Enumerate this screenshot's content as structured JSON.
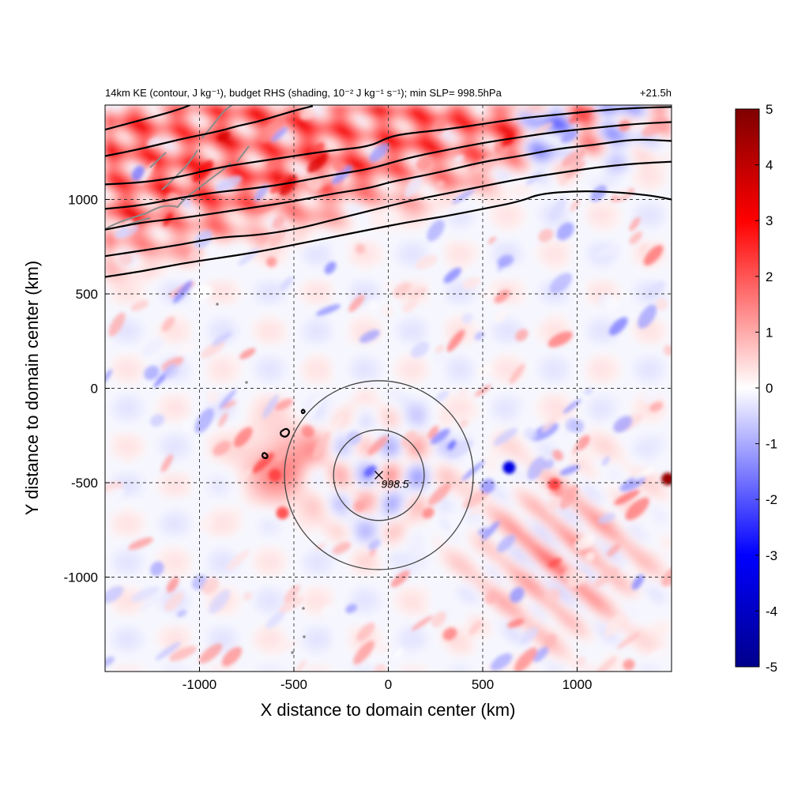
{
  "chart_data": {
    "type": "heatmap",
    "title_left": "14km KE (contour, J kg⁻¹), budget RHS (shading, 10⁻² J kg⁻¹ s⁻¹); min SLP= 998.5hPa",
    "title_right": "+21.5h",
    "xlabel": "X distance to domain center (km)",
    "ylabel": "Y distance to domain center (km)",
    "xlim": [
      -1500,
      1500
    ],
    "ylim": [
      -1500,
      1500
    ],
    "x_ticks": [
      -1000,
      -500,
      0,
      500,
      1000
    ],
    "y_ticks": [
      1000,
      500,
      0,
      -500,
      -1000
    ],
    "x_tick_labels": [
      "-1000",
      "-500",
      "0",
      "500",
      "1000"
    ],
    "y_tick_labels": [
      "1000",
      "500",
      "0",
      "-500",
      "-1000"
    ],
    "grid": true,
    "colorbar": {
      "min": -5,
      "max": 5,
      "ticks": [
        5,
        4,
        3,
        2,
        1,
        0,
        -1,
        -2,
        -3,
        -4,
        -5
      ],
      "tick_labels": [
        "5",
        "4",
        "3",
        "2",
        "1",
        "0",
        "-1",
        "-2",
        "-3",
        "-4",
        "-5"
      ],
      "colors": [
        "#00008b",
        "#0000ff",
        "#ffffff",
        "#ff0000",
        "#7f0000"
      ]
    },
    "storm_center": {
      "x": -50,
      "y": -460,
      "label": "998.5"
    },
    "range_rings_km": [
      240,
      500
    ],
    "ke_contours": [
      {
        "name": "contour-1",
        "points": [
          [
            -1500,
            590
          ],
          [
            -1300,
            620
          ],
          [
            -1100,
            660
          ],
          [
            -900,
            690
          ],
          [
            -700,
            720
          ],
          [
            -500,
            760
          ],
          [
            -300,
            800
          ],
          [
            -100,
            840
          ],
          [
            100,
            880
          ],
          [
            300,
            910
          ],
          [
            500,
            950
          ],
          [
            700,
            990
          ],
          [
            800,
            1030
          ],
          [
            1000,
            1045
          ],
          [
            1200,
            1040
          ],
          [
            1400,
            1020
          ],
          [
            1500,
            1000
          ]
        ]
      },
      {
        "name": "contour-2",
        "points": [
          [
            -1500,
            700
          ],
          [
            -1300,
            730
          ],
          [
            -1100,
            760
          ],
          [
            -900,
            800
          ],
          [
            -700,
            810
          ],
          [
            -500,
            840
          ],
          [
            -300,
            890
          ],
          [
            -100,
            940
          ],
          [
            100,
            990
          ],
          [
            300,
            1030
          ],
          [
            500,
            1070
          ],
          [
            700,
            1110
          ],
          [
            900,
            1140
          ],
          [
            1100,
            1170
          ],
          [
            1300,
            1190
          ],
          [
            1500,
            1200
          ]
        ]
      },
      {
        "name": "contour-3",
        "points": [
          [
            -1500,
            840
          ],
          [
            -1300,
            880
          ],
          [
            -1100,
            900
          ],
          [
            -900,
            930
          ],
          [
            -700,
            960
          ],
          [
            -500,
            990
          ],
          [
            -300,
            1030
          ],
          [
            -100,
            1060
          ],
          [
            0,
            1090
          ],
          [
            100,
            1110
          ],
          [
            300,
            1150
          ],
          [
            500,
            1200
          ],
          [
            700,
            1230
          ],
          [
            900,
            1270
          ],
          [
            1100,
            1290
          ],
          [
            1300,
            1320
          ],
          [
            1500,
            1310
          ]
        ]
      },
      {
        "name": "contour-4",
        "points": [
          [
            -1500,
            950
          ],
          [
            -1300,
            970
          ],
          [
            -1100,
            1010
          ],
          [
            -900,
            1040
          ],
          [
            -700,
            1060
          ],
          [
            -500,
            1090
          ],
          [
            -300,
            1130
          ],
          [
            -100,
            1160
          ],
          [
            100,
            1220
          ],
          [
            300,
            1260
          ],
          [
            500,
            1300
          ],
          [
            700,
            1330
          ],
          [
            900,
            1360
          ],
          [
            1100,
            1380
          ],
          [
            1300,
            1400
          ],
          [
            1500,
            1410
          ]
        ]
      },
      {
        "name": "contour-5",
        "points": [
          [
            -1500,
            1080
          ],
          [
            -1300,
            1090
          ],
          [
            -1100,
            1120
          ],
          [
            -900,
            1170
          ],
          [
            -700,
            1200
          ],
          [
            -500,
            1230
          ],
          [
            -300,
            1260
          ],
          [
            -100,
            1280
          ],
          [
            0,
            1330
          ],
          [
            100,
            1350
          ],
          [
            300,
            1370
          ],
          [
            500,
            1400
          ],
          [
            700,
            1430
          ],
          [
            900,
            1450
          ],
          [
            1100,
            1470
          ],
          [
            1300,
            1485
          ],
          [
            1500,
            1490
          ]
        ]
      },
      {
        "name": "contour-6",
        "points": [
          [
            -1500,
            1230
          ],
          [
            -1300,
            1270
          ],
          [
            -1100,
            1320
          ],
          [
            -900,
            1360
          ],
          [
            -800,
            1390
          ],
          [
            -700,
            1410
          ],
          [
            -600,
            1440
          ],
          [
            -500,
            1470
          ],
          [
            -400,
            1495
          ]
        ]
      },
      {
        "name": "contour-7",
        "points": [
          [
            -1500,
            1370
          ],
          [
            -1350,
            1410
          ],
          [
            -1200,
            1450
          ],
          [
            -1100,
            1480
          ],
          [
            -1050,
            1500
          ]
        ]
      },
      {
        "name": "contour-small-1",
        "points": [
          [
            -570,
            -230
          ],
          [
            -540,
            -210
          ],
          [
            -520,
            -230
          ],
          [
            -540,
            -260
          ],
          [
            -570,
            -250
          ],
          [
            -570,
            -230
          ]
        ]
      },
      {
        "name": "contour-small-2",
        "points": [
          [
            -660,
            -340
          ],
          [
            -640,
            -350
          ],
          [
            -640,
            -370
          ],
          [
            -660,
            -370
          ],
          [
            -670,
            -355
          ],
          [
            -660,
            -340
          ]
        ]
      },
      {
        "name": "contour-small-3",
        "points": [
          [
            -460,
            -120
          ],
          [
            -450,
            -110
          ],
          [
            -440,
            -125
          ],
          [
            -455,
            -135
          ],
          [
            -460,
            -120
          ]
        ]
      }
    ]
  }
}
